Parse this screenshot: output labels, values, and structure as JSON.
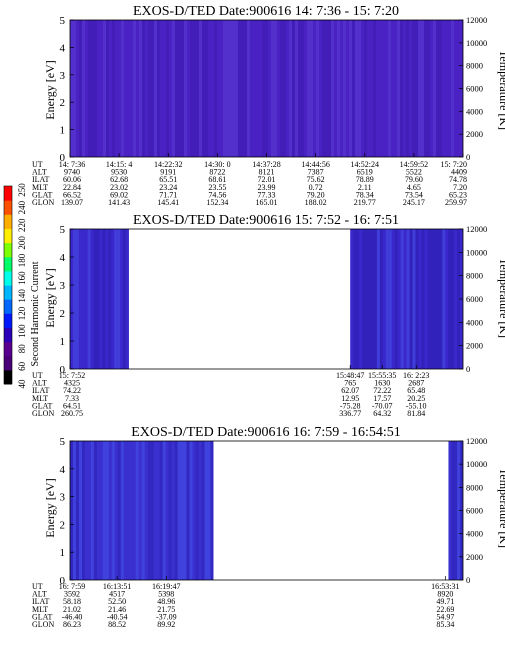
{
  "colorbar": {
    "label": "Second Harmonic Current",
    "ticks": [
      "40",
      "60",
      "80",
      "100",
      "120",
      "140",
      "160",
      "180",
      "200",
      "220",
      "240",
      "250"
    ],
    "colors": [
      "#000000",
      "#4a0077",
      "#5a0090",
      "#2a00b8",
      "#0018ff",
      "#0068ff",
      "#00b4ff",
      "#00ffea",
      "#00ff66",
      "#7cff00",
      "#ffee00",
      "#ffae00",
      "#ff5200",
      "#ff0000"
    ]
  },
  "chart_data": [
    {
      "type": "heatmap",
      "title": "EXOS-D/TED   Date:900616  14: 7:36 - 15: 7:20",
      "ylabel": "Energy [eV]",
      "ylabel_right": "Temperature [K]",
      "ylim": [
        0,
        5
      ],
      "yticks": [
        "0",
        "1",
        "2",
        "3",
        "4",
        "5"
      ],
      "ylim_right": [
        0,
        12000
      ],
      "yticks_right": [
        "0",
        "2000",
        "4000",
        "6000",
        "8000",
        "10000",
        "12000"
      ],
      "segments": [
        [
          0,
          1
        ]
      ],
      "colors": {
        "base": "#4a22c4",
        "light": "#6040d8",
        "dark": "#3a18a8"
      },
      "rows": [
        {
          "label": "UT",
          "values": [
            "14: 7:36",
            "14:15: 4",
            "14:22:32",
            "14:30: 0",
            "14:37:28",
            "14:44:56",
            "14:52:24",
            "14:59:52",
            "15: 7:20"
          ]
        },
        {
          "label": "ALT",
          "values": [
            "9740",
            "9530",
            "9191",
            "8722",
            "8121",
            "7387",
            "6519",
            "5522",
            "4409"
          ]
        },
        {
          "label": "ILAT",
          "values": [
            "60.06",
            "62.68",
            "65.51",
            "68.61",
            "72.01",
            "75.62",
            "78.89",
            "79.60",
            "74.78"
          ]
        },
        {
          "label": "MLT",
          "values": [
            "22.84",
            "23.02",
            "23.24",
            "23.55",
            "23.99",
            "0.72",
            "2.11",
            "4.65",
            "7.20"
          ]
        },
        {
          "label": "GLAT",
          "values": [
            "66.52",
            "69.02",
            "71.71",
            "74.56",
            "77.33",
            "79.20",
            "78.34",
            "73.54",
            "65.23"
          ]
        },
        {
          "label": "GLON",
          "values": [
            "139.07",
            "141.43",
            "145.41",
            "152.34",
            "165.01",
            "188.02",
            "219.77",
            "245.17",
            "259.97"
          ]
        }
      ]
    },
    {
      "type": "heatmap",
      "title": "EXOS-D/TED   Date:900616  15: 7:52 - 16: 7:51",
      "ylabel": "Energy [eV]",
      "ylabel_right": "Temperature [K]",
      "ylim": [
        0,
        5
      ],
      "yticks": [
        "0",
        "1",
        "2",
        "3",
        "4",
        "5"
      ],
      "ylim_right": [
        0,
        12000
      ],
      "yticks_right": [
        "0",
        "2000",
        "4000",
        "6000",
        "8000",
        "10000",
        "12000"
      ],
      "segments": [
        [
          0,
          0.15
        ],
        [
          0.713,
          1
        ]
      ],
      "colors": {
        "base": "#3a28cc",
        "light": "#4a56e8",
        "dark": "#2a1aa8"
      },
      "rows": [
        {
          "label": "UT",
          "values": [
            "15: 7:52",
            "15:48:47",
            "15:55:35",
            "16: 2:23"
          ]
        },
        {
          "label": "ALT",
          "values": [
            "4325",
            "765",
            "1630",
            "2687"
          ]
        },
        {
          "label": "ILAT",
          "values": [
            "74.22",
            "62.07",
            "72.22",
            "65.48"
          ]
        },
        {
          "label": "MLT",
          "values": [
            "7.33",
            "12.95",
            "17.57",
            "20.25"
          ]
        },
        {
          "label": "GLAT",
          "values": [
            "64.51",
            "-75.28",
            "-70.07",
            "-55.10"
          ]
        },
        {
          "label": "GLON",
          "values": [
            "260.75",
            "336.77",
            "64.32",
            "81.84"
          ]
        }
      ]
    },
    {
      "type": "heatmap",
      "title": "EXOS-D/TED   Date:900616  16: 7:59 - 16:54:51",
      "ylabel": "Energy [eV]",
      "ylabel_right": "Temperature [K]",
      "ylim": [
        0,
        5
      ],
      "yticks": [
        "0",
        "1",
        "2",
        "3",
        "4",
        "5"
      ],
      "ylim_right": [
        0,
        12000
      ],
      "yticks_right": [
        "0",
        "2000",
        "4000",
        "6000",
        "8000",
        "10000",
        "12000"
      ],
      "segments": [
        [
          0,
          0.365
        ],
        [
          0.963,
          1
        ]
      ],
      "colors": {
        "base": "#3a30d0",
        "light": "#4a58ee",
        "dark": "#2a20b0"
      },
      "rows": [
        {
          "label": "UT",
          "values": [
            "16: 7:59",
            "16:13:51",
            "16:19:47",
            "16:53:31"
          ]
        },
        {
          "label": "ALT",
          "values": [
            "3592",
            "4517",
            "5398",
            "8920"
          ]
        },
        {
          "label": "ILAT",
          "values": [
            "58.18",
            "52.50",
            "48.96",
            "49.71"
          ]
        },
        {
          "label": "MLT",
          "values": [
            "21.02",
            "21.46",
            "21.75",
            "22.69"
          ]
        },
        {
          "label": "GLAT",
          "values": [
            "-46.40",
            "-40.54",
            "-37.09",
            "54.97"
          ]
        },
        {
          "label": "GLON",
          "values": [
            "86.23",
            "88.52",
            "89.92",
            "85.34"
          ]
        }
      ]
    }
  ]
}
